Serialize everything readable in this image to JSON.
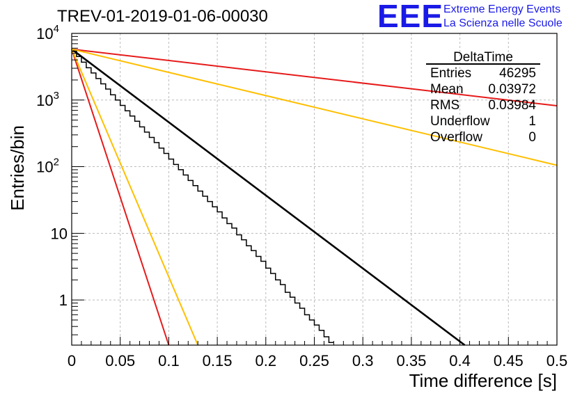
{
  "title": "TREV-01-2019-01-06-00030",
  "logo": {
    "acronym": "EEE",
    "line1": "Extreme Energy Events",
    "line2": "La Scienza nelle Scuole",
    "color": "#1a1ae6"
  },
  "stats_box": {
    "title": "DeltaTime",
    "rows": [
      {
        "label": "Entries",
        "value": "46295"
      },
      {
        "label": "Mean",
        "value": "0.03972"
      },
      {
        "label": "RMS",
        "value": "0.03984"
      },
      {
        "label": "Underflow",
        "value": "1"
      },
      {
        "label": "Overflow",
        "value": "0"
      }
    ]
  },
  "chart_data": {
    "type": "line",
    "xlabel": "Time difference [s]",
    "ylabel": "Entries/bin",
    "xlim": [
      0,
      0.5
    ],
    "ylim": [
      0.21,
      10000
    ],
    "yscale": "log",
    "grid": true,
    "x_ticks": [
      "0",
      "0.05",
      "0.1",
      "0.15",
      "0.2",
      "0.25",
      "0.3",
      "0.35",
      "0.4",
      "0.45",
      "0.5"
    ],
    "x_tick_values": [
      0,
      0.05,
      0.1,
      0.15,
      0.2,
      0.25,
      0.3,
      0.35,
      0.4,
      0.45,
      0.5
    ],
    "y_ticks": [
      {
        "value": 10000,
        "base": "10",
        "exp": "4"
      },
      {
        "value": 1000,
        "base": "10",
        "exp": "3"
      },
      {
        "value": 100,
        "base": "10",
        "exp": "2"
      },
      {
        "value": 10,
        "base": "10",
        "exp": ""
      },
      {
        "value": 1,
        "base": "1",
        "exp": ""
      }
    ],
    "histogram": {
      "color": "#000000",
      "bin_width": 0.005,
      "x_start": 0,
      "counts": [
        5400,
        4500,
        3700,
        3050,
        2550,
        2100,
        1750,
        1460,
        1200,
        1000,
        830,
        690,
        575,
        480,
        395,
        330,
        275,
        230,
        190,
        158,
        130,
        108,
        90,
        75,
        62,
        52,
        43,
        36,
        30,
        25,
        21,
        17,
        14,
        12,
        9.5,
        8,
        6.5,
        5.5,
        4.5,
        3.8,
        3,
        2.5,
        2,
        1.7,
        1.3,
        1.1,
        0.9,
        0.75,
        0.6,
        0.5,
        0.42,
        0.35,
        0.28,
        0.23
      ]
    },
    "series": [
      {
        "color": "#000000",
        "x": [
          0,
          0.405
        ],
        "y": [
          5800,
          0.21
        ]
      },
      {
        "color": "#e61a1a",
        "x": [
          0,
          0.1
        ],
        "y": [
          5800,
          0.21
        ]
      },
      {
        "color": "#ffbf00",
        "x": [
          0,
          0.13
        ],
        "y": [
          5800,
          0.21
        ]
      },
      {
        "color": "#e61a1a",
        "x": [
          0,
          0.5
        ],
        "y": [
          5800,
          820
        ]
      },
      {
        "color": "#ffbf00",
        "x": [
          0,
          0.5
        ],
        "y": [
          5800,
          105
        ]
      }
    ]
  }
}
